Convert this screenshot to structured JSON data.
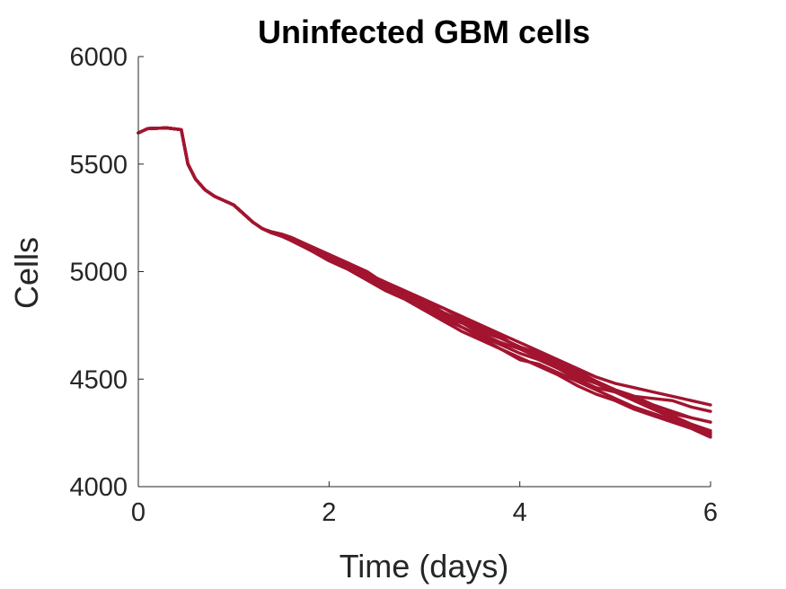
{
  "chart_data": {
    "type": "line",
    "title": "Uninfected GBM cells",
    "xlabel": "Time (days)",
    "ylabel": "Cells",
    "xlim": [
      0,
      6
    ],
    "ylim": [
      4000,
      6000
    ],
    "xticks": [
      0,
      2,
      4,
      6
    ],
    "yticks": [
      4000,
      4500,
      5000,
      5500,
      6000
    ],
    "xtick_labels": [
      "0",
      "2",
      "4",
      "6"
    ],
    "ytick_labels": [
      "4000",
      "4500",
      "5000",
      "5500",
      "6000"
    ],
    "grid": false,
    "line_color": "#A2142F",
    "x": [
      0,
      0.1,
      0.3,
      0.45,
      0.52,
      0.6,
      0.7,
      0.8,
      0.9,
      1.0,
      1.1,
      1.2,
      1.3,
      1.4,
      1.5,
      1.6,
      1.8,
      2.0,
      2.2,
      2.4,
      2.6,
      2.8,
      3.0,
      3.2,
      3.4,
      3.6,
      3.8,
      4.0,
      4.2,
      4.4,
      4.6,
      4.8,
      5.0,
      5.2,
      5.4,
      5.6,
      5.8,
      6.0
    ],
    "series": [
      {
        "values": [
          5645,
          5665,
          5668,
          5660,
          5500,
          5430,
          5380,
          5350,
          5330,
          5310,
          5270,
          5230,
          5200,
          5180,
          5170,
          5150,
          5110,
          5070,
          5040,
          5000,
          4940,
          4900,
          4860,
          4830,
          4790,
          4750,
          4710,
          4670,
          4630,
          4590,
          4550,
          4510,
          4480,
          4460,
          4440,
          4420,
          4400,
          4380
        ]
      },
      {
        "values": [
          5645,
          5665,
          5668,
          5660,
          5500,
          5430,
          5380,
          5350,
          5330,
          5310,
          5270,
          5230,
          5200,
          5185,
          5175,
          5160,
          5120,
          5080,
          5040,
          4990,
          4940,
          4900,
          4860,
          4810,
          4770,
          4730,
          4690,
          4650,
          4610,
          4570,
          4530,
          4490,
          4450,
          4420,
          4410,
          4400,
          4370,
          4350
        ]
      },
      {
        "values": [
          5645,
          5665,
          5668,
          5660,
          5500,
          5430,
          5380,
          5350,
          5330,
          5310,
          5270,
          5230,
          5200,
          5180,
          5165,
          5145,
          5100,
          5060,
          5030,
          4990,
          4950,
          4910,
          4870,
          4830,
          4780,
          4740,
          4700,
          4640,
          4600,
          4560,
          4520,
          4480,
          4450,
          4420,
          4380,
          4350,
          4320,
          4300
        ]
      },
      {
        "values": [
          5645,
          5665,
          5668,
          5660,
          5500,
          5430,
          5380,
          5350,
          5330,
          5310,
          5270,
          5230,
          5200,
          5180,
          5170,
          5150,
          5100,
          5060,
          5020,
          4970,
          4920,
          4880,
          4830,
          4780,
          4740,
          4700,
          4660,
          4620,
          4590,
          4550,
          4510,
          4480,
          4440,
          4400,
          4360,
          4320,
          4290,
          4260
        ]
      },
      {
        "values": [
          5645,
          5665,
          5668,
          5660,
          5500,
          5430,
          5380,
          5350,
          5330,
          5310,
          5270,
          5230,
          5200,
          5180,
          5165,
          5150,
          5110,
          5070,
          5030,
          4980,
          4930,
          4890,
          4850,
          4800,
          4760,
          4720,
          4690,
          4650,
          4620,
          4580,
          4540,
          4490,
          4450,
          4410,
          4370,
          4330,
          4290,
          4240
        ]
      },
      {
        "values": [
          5645,
          5665,
          5668,
          5660,
          5500,
          5430,
          5380,
          5350,
          5330,
          5310,
          5270,
          5230,
          5200,
          5180,
          5170,
          5150,
          5110,
          5060,
          5020,
          4980,
          4930,
          4880,
          4840,
          4790,
          4760,
          4710,
          4670,
          4640,
          4610,
          4550,
          4500,
          4460,
          4440,
          4400,
          4360,
          4340,
          4320,
          4300
        ]
      },
      {
        "values": [
          5645,
          5665,
          5668,
          5660,
          5500,
          5430,
          5380,
          5350,
          5330,
          5310,
          5270,
          5230,
          5200,
          5180,
          5170,
          5150,
          5100,
          5050,
          5010,
          4960,
          4910,
          4870,
          4820,
          4770,
          4720,
          4680,
          4640,
          4600,
          4560,
          4520,
          4470,
          4430,
          4400,
          4360,
          4330,
          4300,
          4270,
          4230
        ]
      },
      {
        "values": [
          5645,
          5665,
          5668,
          5660,
          5500,
          5430,
          5380,
          5350,
          5330,
          5310,
          5270,
          5230,
          5200,
          5180,
          5165,
          5145,
          5100,
          5060,
          5020,
          4970,
          4930,
          4880,
          4840,
          4790,
          4740,
          4690,
          4640,
          4590,
          4570,
          4530,
          4490,
          4450,
          4410,
          4370,
          4340,
          4310,
          4280,
          4250
        ]
      }
    ]
  }
}
